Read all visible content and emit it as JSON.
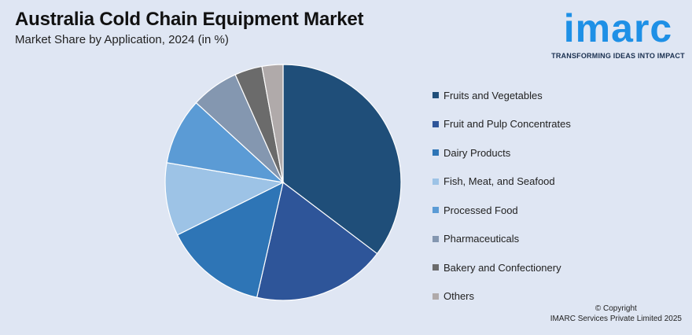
{
  "header": {
    "title": "Australia Cold Chain Equipment Market",
    "subtitle": "Market Share by Application, 2024 (in %)"
  },
  "logo": {
    "word": "imarc",
    "tagline": "TRANSFORMING IDEAS INTO IMPACT"
  },
  "footer": {
    "copyright_line1": "© Copyright",
    "copyright_line2": "IMARC Services Private Limited 2025"
  },
  "chart_data": {
    "type": "pie",
    "categories": [
      "Fruits and Vegetables",
      "Fruit and Pulp Concentrates",
      "Dairy Products",
      "Fish, Meat, and Seafood",
      "Processed Food",
      "Pharmaceuticals",
      "Bakery and Confectionery",
      "Others"
    ],
    "values": [
      35.6,
      18.4,
      14.2,
      10.1,
      9.2,
      6.6,
      3.8,
      2.9
    ],
    "colors": [
      "#1f4e79",
      "#2e5599",
      "#2e75b6",
      "#9dc3e6",
      "#5b9bd5",
      "#8497b0",
      "#6b6b6b",
      "#b0aaaa"
    ],
    "legend_position": "right"
  }
}
